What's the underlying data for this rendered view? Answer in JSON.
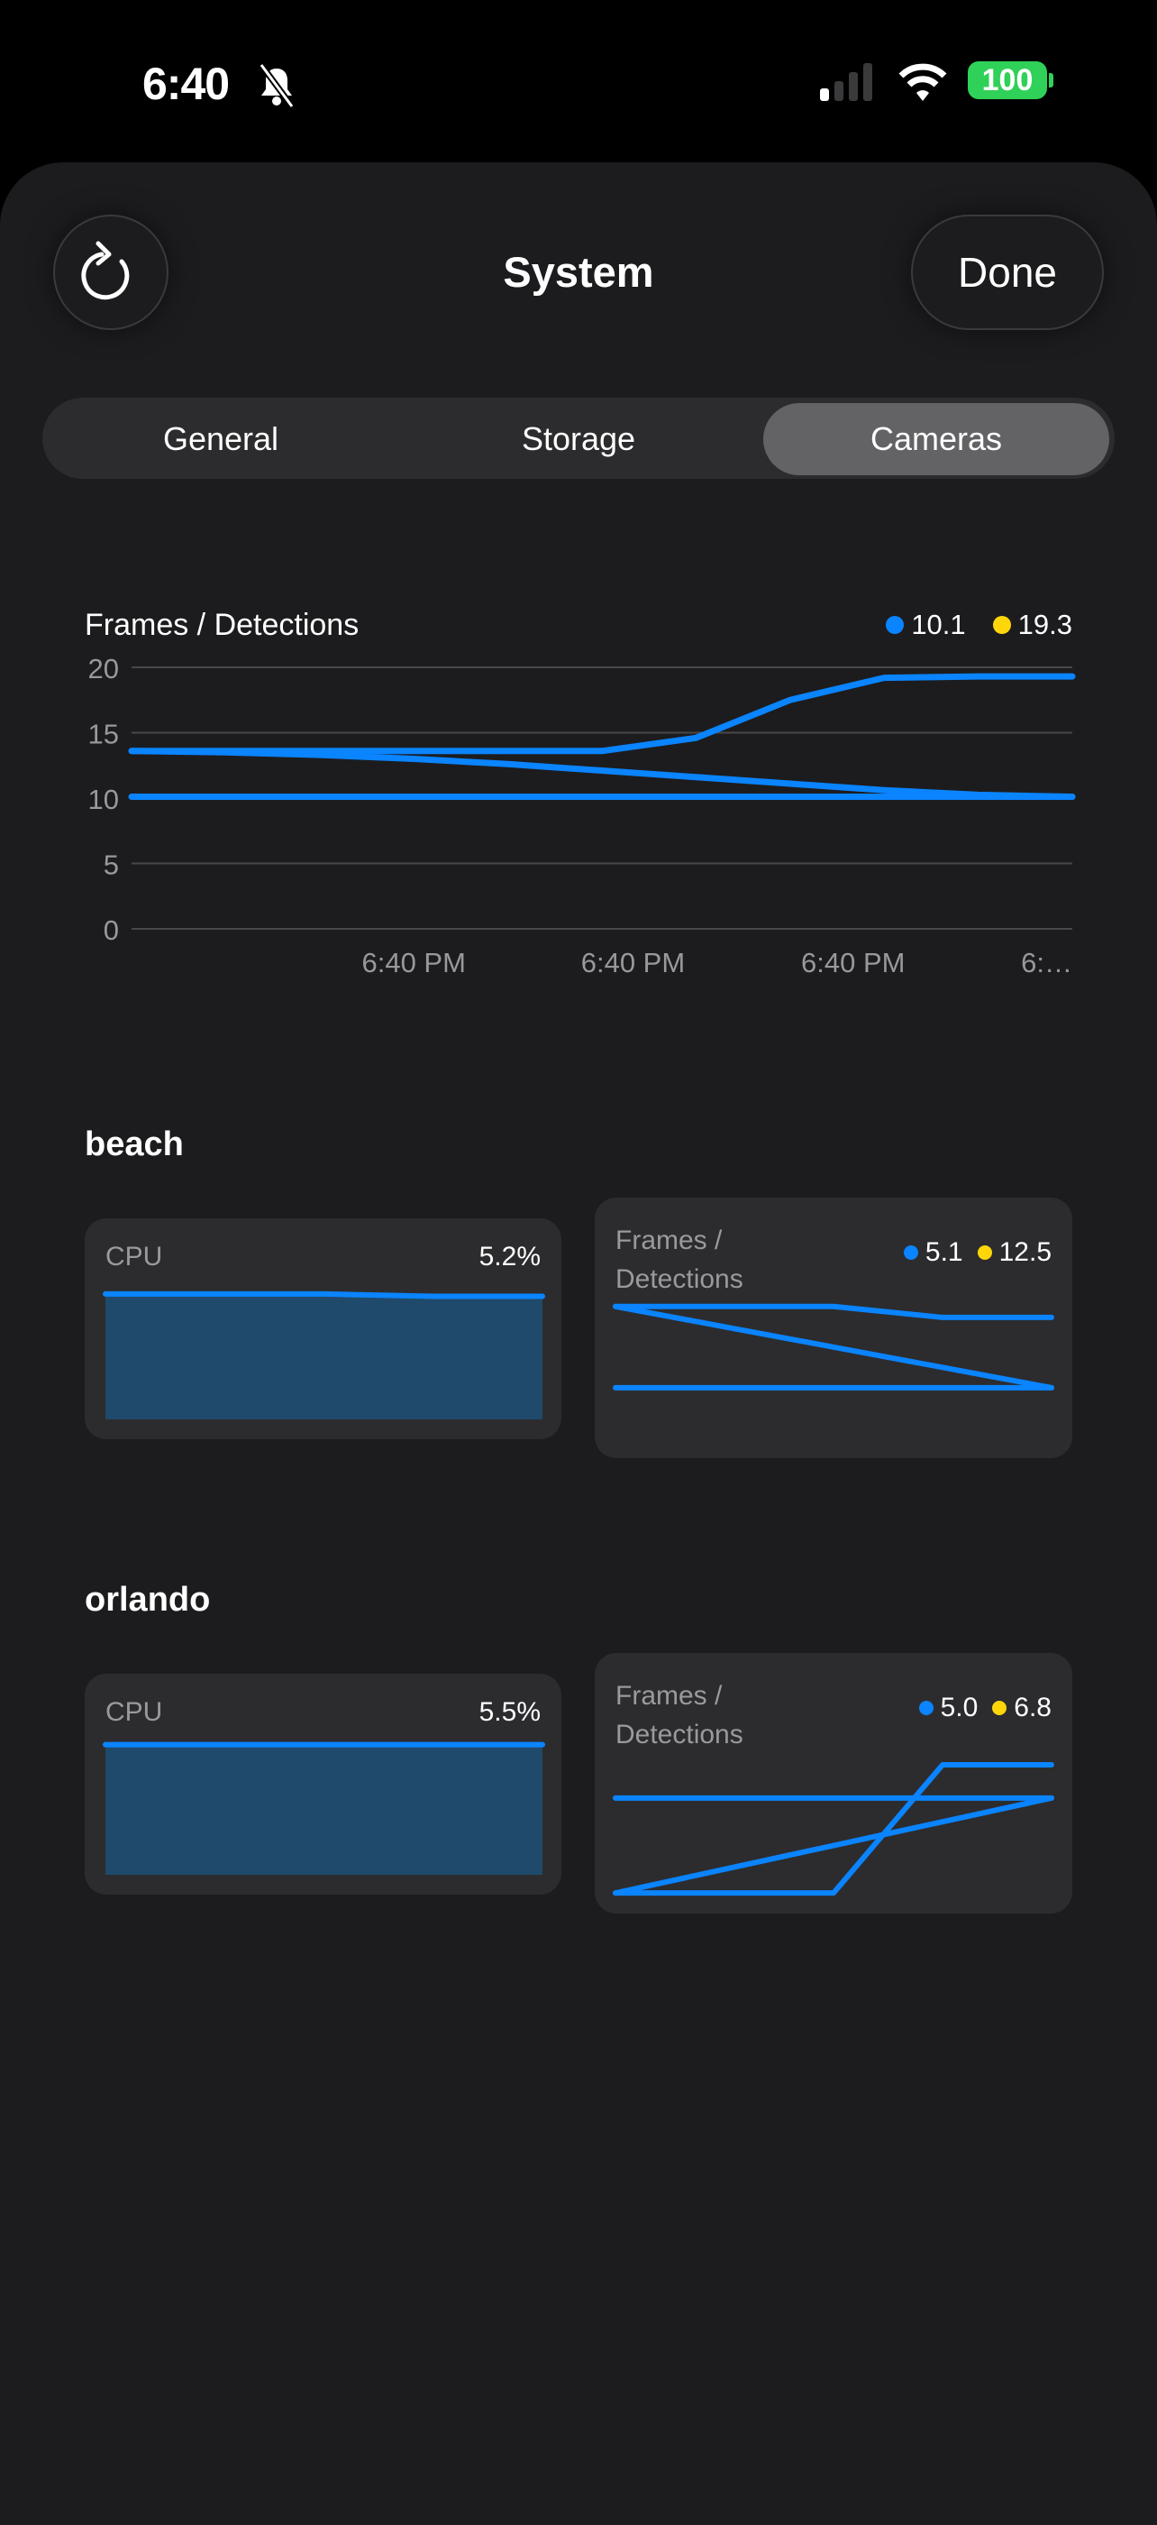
{
  "status_bar": {
    "time": "6:40",
    "battery": "100",
    "icons": [
      "bell-slash-icon",
      "cellular-signal-icon",
      "wifi-icon",
      "battery-icon"
    ]
  },
  "header": {
    "title": "System",
    "refresh_icon": "refresh-icon",
    "done_label": "Done"
  },
  "tabs": [
    {
      "label": "General",
      "selected": false
    },
    {
      "label": "Storage",
      "selected": false
    },
    {
      "label": "Cameras",
      "selected": true
    }
  ],
  "colors": {
    "accent": "#0a84ff",
    "yellow": "#ffd60a",
    "fill": "#1f4a6b"
  },
  "chart_data": [
    {
      "type": "line",
      "title": "Frames / Detections",
      "legend": [
        {
          "color": "#0a84ff",
          "value": "10.1"
        },
        {
          "color": "#ffd60a",
          "value": "19.3"
        }
      ],
      "ylim": [
        0,
        20
      ],
      "xlim": [
        0,
        10
      ],
      "yticks": [
        "0",
        "5",
        "10",
        "15",
        "20"
      ],
      "yticks_values": [
        0,
        5,
        10,
        15,
        20
      ],
      "xticks": [
        {
          "x": 3,
          "label": "6:40 PM"
        },
        {
          "x": 5.33,
          "label": "6:40 PM"
        },
        {
          "x": 7.67,
          "label": "6:40 PM"
        },
        {
          "x": 10,
          "label": "6:…"
        }
      ],
      "x": [
        0,
        1,
        2,
        3,
        4,
        5,
        6,
        7,
        8,
        9,
        10
      ],
      "series": [
        {
          "name": "a",
          "values": [
            13.6,
            13.6,
            13.6,
            13.6,
            13.6,
            13.6,
            14.6,
            17.5,
            19.2,
            19.3,
            19.3
          ]
        },
        {
          "name": "b",
          "values": [
            13.6,
            13.5,
            13.3,
            13.0,
            12.6,
            12.1,
            11.6,
            11.1,
            10.6,
            10.25,
            10.1
          ]
        },
        {
          "name": "c",
          "values": [
            10.1,
            10.1,
            10.1,
            10.1,
            10.1,
            10.1,
            10.1,
            10.1,
            10.1,
            10.1,
            10.1
          ]
        }
      ]
    }
  ],
  "cameras": [
    {
      "name": "beach",
      "cpu": {
        "label": "CPU",
        "value": "5.2%",
        "type": "area",
        "ylim": [
          0,
          5.6
        ],
        "x": [
          0,
          1,
          2,
          3,
          4
        ],
        "values": [
          5.3,
          5.3,
          5.3,
          5.2,
          5.2
        ]
      },
      "frames": {
        "label_line1": "Frames /",
        "label_line2": "Detections",
        "legend": [
          {
            "color": "#0a84ff",
            "value": "5.1"
          },
          {
            "color": "#ffd60a",
            "value": "12.5"
          }
        ],
        "type": "line",
        "ylim": [
          0,
          13.3
        ],
        "x": [
          0,
          1,
          2,
          3,
          4
        ],
        "series": [
          {
            "values": [
              12.5,
              12.5,
              12.5,
              11.5,
              11.5
            ]
          },
          {
            "values": [
              12.5,
              10.65,
              8.8,
              6.95,
              5.1
            ]
          },
          {
            "values": [
              5.1,
              5.1,
              5.1,
              5.1,
              5.1
            ]
          }
        ]
      }
    },
    {
      "name": "orlando",
      "cpu": {
        "label": "CPU",
        "value": "5.5%",
        "type": "area",
        "ylim": [
          0,
          5.6
        ],
        "x": [
          0,
          1,
          2,
          3,
          4
        ],
        "values": [
          5.5,
          5.5,
          5.5,
          5.5,
          5.5
        ]
      },
      "frames": {
        "label_line1": "Frames /",
        "label_line2": "Detections",
        "legend": [
          {
            "color": "#0a84ff",
            "value": "5.0"
          },
          {
            "color": "#ffd60a",
            "value": "6.8"
          }
        ],
        "type": "line",
        "ylim": [
          4.9,
          7.55
        ],
        "x": [
          0,
          1,
          2,
          3,
          4
        ],
        "series": [
          {
            "values": [
              6.8,
              6.8,
              6.8,
              6.8,
              6.8
            ]
          },
          {
            "values": [
              5.0,
              5.45,
              5.9,
              6.35,
              6.8
            ]
          },
          {
            "values": [
              5.0,
              5.0,
              5.0,
              7.43,
              7.43
            ]
          }
        ]
      }
    }
  ]
}
